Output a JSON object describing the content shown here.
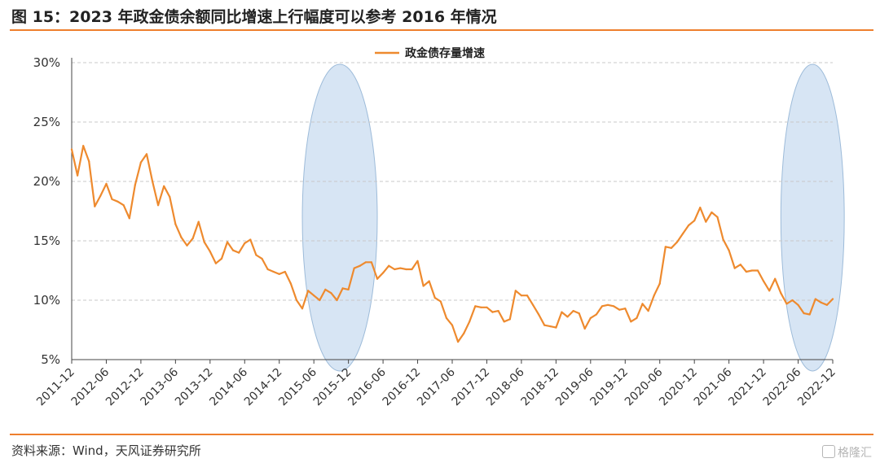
{
  "figure": {
    "title": "图 15：2023 年政金债余额同比增速上行幅度可以参考 2016 年情况",
    "source": "资料来源：Wind，天风证券研究所",
    "watermark": "格隆汇"
  },
  "colors": {
    "series": "#ee8a2e",
    "accent_rule": "#ee7f2d",
    "ellipse_fill": "#c9dcf0",
    "ellipse_stroke": "#9dbbd9",
    "grid": "#c8c8c8"
  },
  "chart_data": {
    "type": "line",
    "title": "",
    "xlabel": "",
    "ylabel": "",
    "ylim": [
      5,
      30
    ],
    "y_ticks": [
      "5%",
      "10%",
      "15%",
      "20%",
      "25%",
      "30%"
    ],
    "y_tick_values": [
      5,
      10,
      15,
      20,
      25,
      30
    ],
    "x_tick_labels": [
      "2011-12",
      "2012-06",
      "2012-12",
      "2013-06",
      "2013-12",
      "2014-06",
      "2014-12",
      "2015-06",
      "2015-12",
      "2016-06",
      "2016-12",
      "2017-06",
      "2017-12",
      "2018-06",
      "2018-12",
      "2019-06",
      "2019-12",
      "2020-06",
      "2020-12",
      "2021-06",
      "2021-12",
      "2022-06",
      "2022-12"
    ],
    "grid": true,
    "legend_position": "top-center",
    "highlight_periods": [
      {
        "from": "2015-04",
        "to": "2016-05"
      },
      {
        "from": "2022-03",
        "to": "2023-02"
      }
    ],
    "series": [
      {
        "name": "政金债存量增速",
        "x": [
          "2011-12",
          "2012-01",
          "2012-02",
          "2012-03",
          "2012-04",
          "2012-05",
          "2012-06",
          "2012-07",
          "2012-08",
          "2012-09",
          "2012-10",
          "2012-11",
          "2012-12",
          "2013-01",
          "2013-02",
          "2013-03",
          "2013-04",
          "2013-05",
          "2013-06",
          "2013-07",
          "2013-08",
          "2013-09",
          "2013-10",
          "2013-11",
          "2013-12",
          "2014-01",
          "2014-02",
          "2014-03",
          "2014-04",
          "2014-05",
          "2014-06",
          "2014-07",
          "2014-08",
          "2014-09",
          "2014-10",
          "2014-11",
          "2014-12",
          "2015-01",
          "2015-02",
          "2015-03",
          "2015-04",
          "2015-05",
          "2015-06",
          "2015-07",
          "2015-08",
          "2015-09",
          "2015-10",
          "2015-11",
          "2015-12",
          "2016-01",
          "2016-02",
          "2016-03",
          "2016-04",
          "2016-05",
          "2016-06",
          "2016-07",
          "2016-08",
          "2016-09",
          "2016-10",
          "2016-11",
          "2016-12",
          "2017-01",
          "2017-02",
          "2017-03",
          "2017-04",
          "2017-05",
          "2017-06",
          "2017-07",
          "2017-08",
          "2017-09",
          "2017-10",
          "2017-11",
          "2017-12",
          "2018-01",
          "2018-02",
          "2018-03",
          "2018-04",
          "2018-05",
          "2018-06",
          "2018-07",
          "2018-08",
          "2018-09",
          "2018-10",
          "2018-11",
          "2018-12",
          "2019-01",
          "2019-02",
          "2019-03",
          "2019-04",
          "2019-05",
          "2019-06",
          "2019-07",
          "2019-08",
          "2019-09",
          "2019-10",
          "2019-11",
          "2019-12",
          "2020-01",
          "2020-02",
          "2020-03",
          "2020-04",
          "2020-05",
          "2020-06",
          "2020-07",
          "2020-08",
          "2020-09",
          "2020-10",
          "2020-11",
          "2020-12",
          "2021-01",
          "2021-02",
          "2021-03",
          "2021-04",
          "2021-05",
          "2021-06",
          "2021-07",
          "2021-08",
          "2021-09",
          "2021-10",
          "2021-11",
          "2021-12",
          "2022-01",
          "2022-02",
          "2022-03",
          "2022-04",
          "2022-05",
          "2022-06",
          "2022-07",
          "2022-08",
          "2022-09",
          "2022-10",
          "2022-11",
          "2022-12"
        ],
        "values": [
          22.7,
          20.5,
          23.0,
          21.7,
          17.9,
          18.8,
          19.8,
          18.5,
          18.3,
          18.0,
          16.9,
          19.7,
          21.6,
          22.3,
          20.0,
          18.0,
          19.6,
          18.7,
          16.4,
          15.3,
          14.6,
          15.2,
          16.6,
          14.9,
          14.1,
          13.1,
          13.5,
          14.9,
          14.2,
          14.0,
          14.8,
          15.1,
          13.8,
          13.5,
          12.6,
          12.4,
          12.2,
          12.4,
          11.4,
          10.0,
          9.3,
          10.8,
          10.4,
          10.0,
          10.9,
          10.6,
          10.0,
          11.0,
          10.9,
          12.7,
          12.9,
          13.2,
          13.2,
          11.8,
          12.3,
          12.9,
          12.6,
          12.7,
          12.6,
          12.6,
          13.3,
          11.2,
          11.6,
          10.2,
          9.9,
          8.5,
          7.9,
          6.5,
          7.2,
          8.2,
          9.5,
          9.4,
          9.4,
          9.0,
          9.1,
          8.2,
          8.4,
          10.8,
          10.4,
          10.4,
          9.6,
          8.8,
          7.9,
          7.8,
          7.7,
          9.0,
          8.6,
          9.1,
          8.9,
          7.6,
          8.5,
          8.8,
          9.5,
          9.6,
          9.5,
          9.2,
          9.3,
          8.2,
          8.5,
          9.7,
          9.1,
          10.4,
          11.4,
          14.5,
          14.4,
          14.9,
          15.6,
          16.3,
          16.7,
          17.8,
          16.6,
          17.4,
          17.0,
          15.1,
          14.2,
          12.7,
          13.0,
          12.4,
          12.5,
          12.5,
          11.6,
          10.8,
          11.8,
          10.6,
          9.7,
          10.0,
          9.6,
          8.9,
          8.8,
          10.1,
          9.8,
          9.6,
          10.1
        ]
      }
    ]
  }
}
